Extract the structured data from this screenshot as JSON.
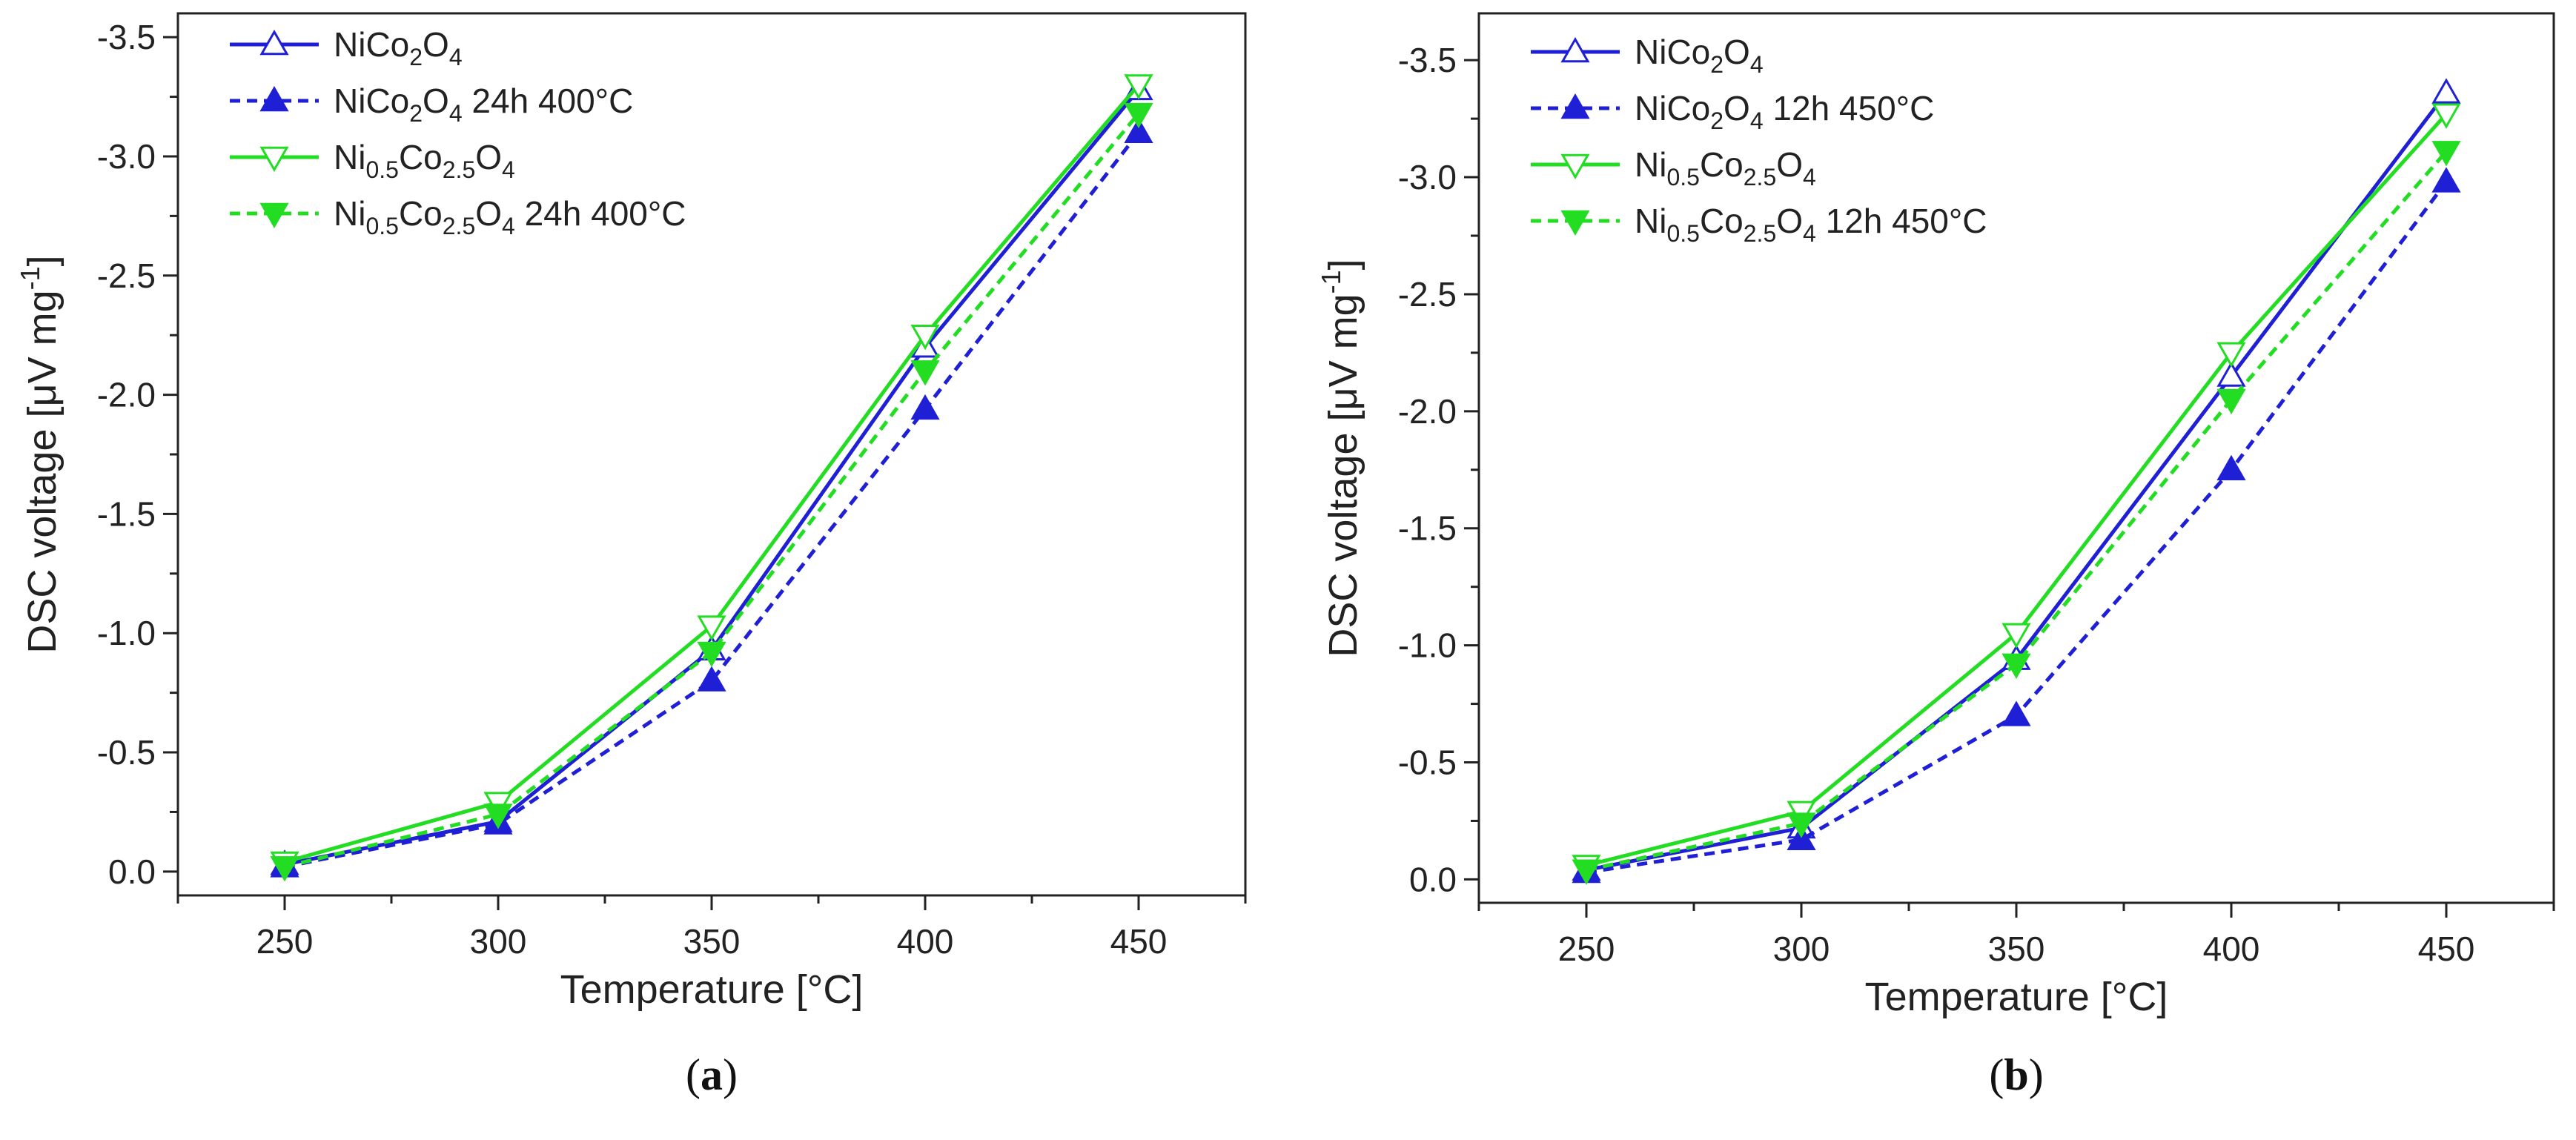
{
  "chart_data": [
    {
      "type": "line",
      "panel_label": "a",
      "xlabel": "Temperature [°C]",
      "ylabel": {
        "main": "DSC voltage [μV mg",
        "sup": "-1",
        "end": "]"
      },
      "xlim": [
        225,
        475
      ],
      "ylim": [
        0.1,
        -3.6
      ],
      "xticks": [
        250,
        300,
        350,
        400,
        450
      ],
      "xtick_labels": [
        "250",
        "300",
        "350",
        "400",
        "450"
      ],
      "yticks": [
        0.0,
        -0.5,
        -1.0,
        -1.5,
        -2.0,
        -2.5,
        -3.0,
        -3.5
      ],
      "ytick_labels": [
        "0.0",
        "-0.5",
        "-1.0",
        "-1.5",
        "-2.0",
        "-2.5",
        "-3.0",
        "-3.5"
      ],
      "legend_position": "top-left",
      "series": [
        {
          "name": "NiCo2O4",
          "legend": {
            "base": "NiCo",
            "sub1": "2",
            "mid": "O",
            "sub2": "4",
            "suffix": ""
          },
          "color": "#1f1fd6",
          "dash": "solid",
          "marker": "triangle-up",
          "x": [
            250,
            300,
            350,
            400,
            450
          ],
          "y": [
            -0.03,
            -0.21,
            -0.93,
            -2.2,
            -3.28
          ]
        },
        {
          "name": "NiCo2O4 24h 400°C",
          "legend": {
            "base": "NiCo",
            "sub1": "2",
            "mid": "O",
            "sub2": "4",
            "suffix": " 24h 400°C"
          },
          "color": "#1f1fd6",
          "dash": "dashed",
          "marker": "triangle-up",
          "x": [
            250,
            300,
            350,
            400,
            450
          ],
          "y": [
            -0.02,
            -0.2,
            -0.8,
            -1.94,
            -3.1
          ]
        },
        {
          "name": "Ni0.5Co2.5O4",
          "legend": {
            "base": "Ni",
            "sub1": "0.5",
            "mid": "Co",
            "sub2": "2.5",
            "suffix": "",
            "tail": "O",
            "sub3": "4"
          },
          "color": "#22dd22",
          "dash": "solid",
          "marker": "triangle-down",
          "x": [
            250,
            300,
            350,
            400,
            450
          ],
          "y": [
            -0.04,
            -0.29,
            -1.03,
            -2.25,
            -3.3
          ]
        },
        {
          "name": "Ni0.5Co2.5O4 24h 400°C",
          "legend": {
            "base": "Ni",
            "sub1": "0.5",
            "mid": "Co",
            "sub2": "2.5",
            "suffix": " 24h 400°C",
            "tail": "O",
            "sub3": "4"
          },
          "color": "#22dd22",
          "dash": "dashed",
          "marker": "triangle-down",
          "x": [
            250,
            300,
            350,
            400,
            450
          ],
          "y": [
            -0.02,
            -0.24,
            -0.92,
            -2.1,
            -3.18
          ]
        }
      ]
    },
    {
      "type": "line",
      "panel_label": "b",
      "xlabel": "Temperature [°C]",
      "ylabel": {
        "main": "DSC voltage [μV mg",
        "sup": "-1",
        "end": "]"
      },
      "xlim": [
        225,
        475
      ],
      "ylim": [
        0.1,
        -3.7
      ],
      "xticks": [
        250,
        300,
        350,
        400,
        450
      ],
      "xtick_labels": [
        "250",
        "300",
        "350",
        "400",
        "450"
      ],
      "yticks": [
        0.0,
        -0.5,
        -1.0,
        -1.5,
        -2.0,
        -2.5,
        -3.0,
        -3.5
      ],
      "ytick_labels": [
        "0.0",
        "-0.5",
        "-1.0",
        "-1.5",
        "-2.0",
        "-2.5",
        "-3.0",
        "-3.5"
      ],
      "legend_position": "top-left",
      "series": [
        {
          "name": "NiCo2O4",
          "legend": {
            "base": "NiCo",
            "sub1": "2",
            "mid": "O",
            "sub2": "4",
            "suffix": ""
          },
          "color": "#1f1fd6",
          "dash": "solid",
          "marker": "triangle-up",
          "x": [
            250,
            300,
            350,
            400,
            450
          ],
          "y": [
            -0.04,
            -0.22,
            -0.94,
            -2.15,
            -3.36
          ]
        },
        {
          "name": "NiCo2O4 12h 450°C",
          "legend": {
            "base": "NiCo",
            "sub1": "2",
            "mid": "O",
            "sub2": "4",
            "suffix": " 12h 450°C"
          },
          "color": "#1f1fd6",
          "dash": "dashed",
          "marker": "triangle-up",
          "x": [
            250,
            300,
            350,
            400,
            450
          ],
          "y": [
            -0.03,
            -0.17,
            -0.7,
            -1.75,
            -2.98
          ]
        },
        {
          "name": "Ni0.5Co2.5O4",
          "legend": {
            "base": "Ni",
            "sub1": "0.5",
            "mid": "Co",
            "sub2": "2.5",
            "suffix": "",
            "tail": "O",
            "sub3": "4"
          },
          "color": "#22dd22",
          "dash": "solid",
          "marker": "triangle-down",
          "x": [
            250,
            300,
            350,
            400,
            450
          ],
          "y": [
            -0.06,
            -0.29,
            -1.05,
            -2.25,
            -3.27
          ]
        },
        {
          "name": "Ni0.5Co2.5O4 12h 450°C",
          "legend": {
            "base": "Ni",
            "sub1": "0.5",
            "mid": "Co",
            "sub2": "2.5",
            "suffix": " 12h 450°C",
            "tail": "O",
            "sub3": "4"
          },
          "color": "#22dd22",
          "dash": "dashed",
          "marker": "triangle-down",
          "x": [
            250,
            300,
            350,
            400,
            450
          ],
          "y": [
            -0.04,
            -0.24,
            -0.92,
            -2.05,
            -3.11
          ]
        }
      ]
    }
  ]
}
